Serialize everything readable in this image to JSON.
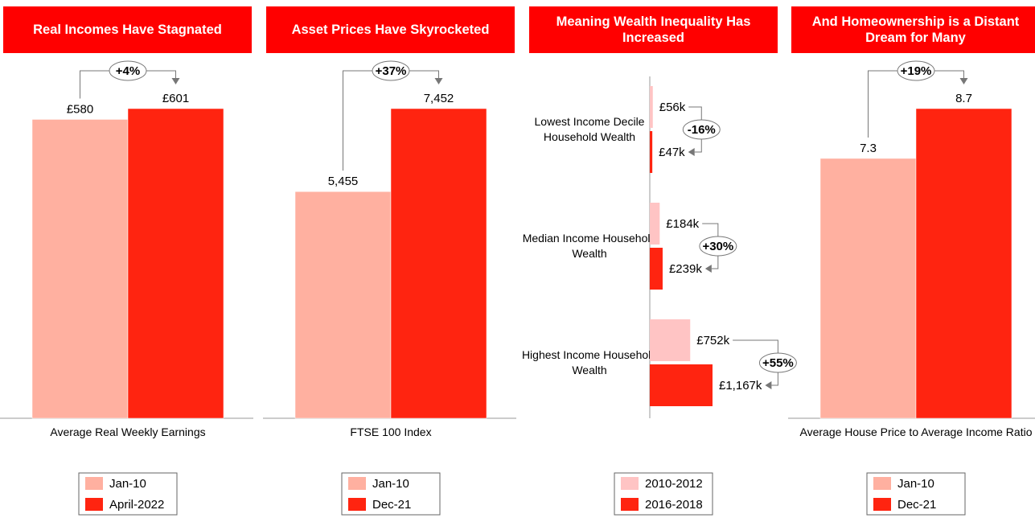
{
  "chart_data": [
    {
      "type": "bar",
      "title": "Real Incomes Have Stagnated",
      "categories": [
        "Average Real Weekly Earnings"
      ],
      "annotations": [
        "+4%"
      ],
      "series": [
        {
          "name": "Jan-10",
          "color": "#ffb0a0",
          "values": [
            580
          ],
          "value_labels": [
            "£580"
          ]
        },
        {
          "name": "April-2022",
          "color": "#ff2410",
          "values": [
            601
          ],
          "value_labels": [
            "£601"
          ]
        }
      ]
    },
    {
      "type": "bar",
      "title": "Asset Prices Have Skyrocketed",
      "categories": [
        "FTSE 100 Index"
      ],
      "annotations": [
        "+37%"
      ],
      "series": [
        {
          "name": "Jan-10",
          "color": "#ffb0a0",
          "values": [
            5455
          ],
          "value_labels": [
            "5,455"
          ]
        },
        {
          "name": "Dec-21",
          "color": "#ff2410",
          "values": [
            7452
          ],
          "value_labels": [
            "7,452"
          ]
        }
      ]
    },
    {
      "type": "barh",
      "title": "Meaning Wealth Inequality Has Increased",
      "categories": [
        "Lowest Income Decile Household Wealth",
        "Median Income Household Wealth",
        "Highest Income Household Wealth"
      ],
      "annotations": [
        "-16%",
        "+30%",
        "+55%"
      ],
      "series": [
        {
          "name": "2010-2012",
          "color": "#ffc4c4",
          "values": [
            56,
            184,
            752
          ],
          "value_labels": [
            "£56k",
            "£184k",
            "£752k"
          ]
        },
        {
          "name": "2016-2018",
          "color": "#ff2410",
          "values": [
            47,
            239,
            1167
          ],
          "value_labels": [
            "£47k",
            "£239k",
            "£1,167k"
          ]
        }
      ]
    },
    {
      "type": "bar",
      "title": "And Homeownership is a Distant Dream for Many",
      "categories": [
        "Average House Price to Average Income Ratio"
      ],
      "annotations": [
        "+19%"
      ],
      "series": [
        {
          "name": "Jan-10",
          "color": "#ffb0a0",
          "values": [
            7.3
          ]
        },
        {
          "name": "Dec-21",
          "color": "#ff2410",
          "values": [
            8.7
          ]
        }
      ]
    }
  ]
}
